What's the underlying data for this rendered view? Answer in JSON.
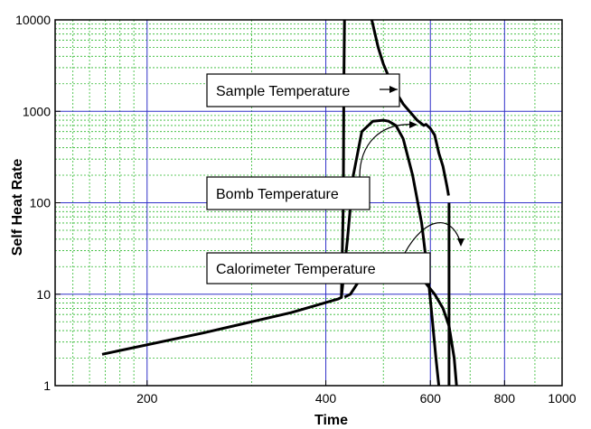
{
  "chart_data": {
    "type": "line",
    "title": "",
    "xlabel": "Time",
    "ylabel": "Self Heat Rate",
    "x_scale": "log",
    "y_scale": "log",
    "xlim": [
      140,
      1000
    ],
    "ylim": [
      1,
      10000
    ],
    "x_ticks": [
      {
        "value": 200,
        "label": "200"
      },
      {
        "value": 400,
        "label": "400"
      },
      {
        "value": 600,
        "label": "600"
      },
      {
        "value": 800,
        "label": "800"
      },
      {
        "value": 1000,
        "label": "1000"
      }
    ],
    "y_ticks": [
      {
        "value": 1,
        "label": "1"
      },
      {
        "value": 10,
        "label": "10"
      },
      {
        "value": 100,
        "label": "100"
      },
      {
        "value": 1000,
        "label": "1000"
      },
      {
        "value": 10000,
        "label": "10000"
      }
    ],
    "grid": {
      "major": true,
      "minor": true,
      "major_color": "#3030c8",
      "minor_color": "#2eb82e"
    },
    "legend": "none",
    "series": [
      {
        "name": "Sample Temperature",
        "points": [
          [
            168,
            2.2
          ],
          [
            250,
            3.8
          ],
          [
            350,
            6.3
          ],
          [
            420,
            8.9
          ],
          [
            425,
            9.2
          ],
          [
            428,
            100
          ],
          [
            429,
            2000
          ],
          [
            430,
            10000
          ]
        ],
        "segments": [
          [
            [
              478,
              10000
            ],
            [
              490,
              5000
            ],
            [
              500,
              3300
            ],
            [
              520,
              1800
            ],
            [
              540,
              1200
            ],
            [
              570,
              800
            ],
            [
              585,
              700
            ],
            [
              590,
              720
            ],
            [
              600,
              650
            ],
            [
              610,
              550
            ],
            [
              620,
              350
            ],
            [
              630,
              250
            ],
            [
              640,
              150
            ],
            [
              644,
              120
            ]
          ],
          [
            [
              645,
              100
            ],
            [
              645,
              1
            ]
          ]
        ]
      },
      {
        "name": "Bomb Temperature",
        "points": [
          [
            425,
            9.2
          ],
          [
            435,
            40
          ],
          [
            445,
            200
          ],
          [
            460,
            600
          ],
          [
            480,
            780
          ],
          [
            500,
            800
          ],
          [
            510,
            780
          ],
          [
            525,
            700
          ],
          [
            540,
            500
          ],
          [
            560,
            200
          ],
          [
            580,
            60
          ],
          [
            595,
            15
          ],
          [
            605,
            5
          ],
          [
            613,
            2
          ],
          [
            620,
            1
          ]
        ]
      },
      {
        "name": "Calorimeter Temperature",
        "points": [
          [
            430,
            9.3
          ],
          [
            440,
            10
          ],
          [
            455,
            14
          ],
          [
            470,
            19
          ],
          [
            490,
            20.5
          ],
          [
            520,
            20.5
          ],
          [
            555,
            19
          ],
          [
            580,
            15
          ],
          [
            610,
            10
          ],
          [
            630,
            7
          ],
          [
            645,
            4.5
          ],
          [
            658,
            2
          ],
          [
            664,
            1
          ]
        ]
      }
    ],
    "annotations": [
      {
        "text": "Sample Temperature",
        "target": [
          430,
          1700
        ]
      },
      {
        "text": "Bomb Temperature",
        "target": [
          472,
          820
        ]
      },
      {
        "text": "Calorimeter Temperature",
        "target": [
          520,
          30
        ]
      }
    ]
  }
}
